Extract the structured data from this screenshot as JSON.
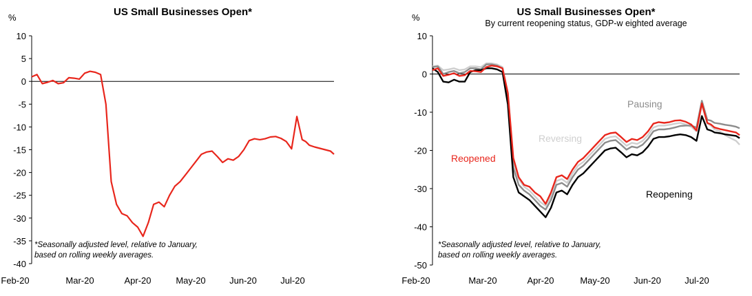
{
  "chart_data": [
    {
      "type": "line",
      "title": "US Small Businesses  Open*",
      "subtitle": "",
      "ylabel": "%",
      "ylim": [
        -40,
        10
      ],
      "yticks": [
        10,
        5,
        0,
        -5,
        -10,
        -15,
        -20,
        -25,
        -30,
        -35,
        -40
      ],
      "xticks": [
        "Feb-20",
        "Mar-20",
        "Apr-20",
        "May-20",
        "Jun-20",
        "Jul-20"
      ],
      "note": [
        "*Seasonally adjusted level, relative to January,",
        "based on rolling weekly averages."
      ],
      "series": [
        {
          "color": "#e8261c",
          "x": [
            0,
            3,
            6,
            9,
            12,
            15,
            18,
            21,
            24,
            27,
            30,
            33,
            36,
            39,
            42,
            45,
            48,
            51,
            54,
            57,
            60,
            63,
            66,
            69,
            72,
            75,
            78,
            81,
            84,
            87,
            90,
            93,
            96,
            99,
            102,
            105,
            108,
            111,
            114,
            117,
            120,
            123,
            126,
            129,
            132,
            135,
            138,
            141,
            144,
            147,
            150,
            153,
            155,
            156,
            157,
            160,
            163,
            166,
            169,
            171
          ],
          "values": [
            1,
            1.5,
            -0.5,
            -0.2,
            0.2,
            -0.5,
            -0.3,
            0.8,
            0.7,
            0.5,
            1.8,
            2.2,
            2,
            1.5,
            -5,
            -22,
            -27,
            -29,
            -29.5,
            -31,
            -32,
            -34,
            -31,
            -27,
            -26.5,
            -27.5,
            -25,
            -23,
            -22,
            -20.5,
            -19,
            -17.5,
            -16,
            -15.5,
            -15.3,
            -16.5,
            -17.8,
            -17,
            -17.3,
            -16.5,
            -15,
            -13,
            -12.6,
            -12.8,
            -12.6,
            -12.2,
            -12.1,
            -12.5,
            -13.2,
            -14.8,
            -7.7,
            -12.8,
            -13.2,
            -13.6,
            -14,
            -14.4,
            -14.7,
            -15,
            -15.3,
            -16
          ]
        }
      ]
    },
    {
      "type": "line",
      "title": "US Small Businesses  Open*",
      "subtitle": "By current reopening status, GDP-w eighted average",
      "ylabel": "%",
      "ylim": [
        -50,
        10
      ],
      "yticks": [
        10,
        0,
        -10,
        -20,
        -30,
        -40,
        -50
      ],
      "xticks": [
        "Feb-20",
        "Mar-20",
        "Apr-20",
        "May-20",
        "Jun-20",
        "Jul-20"
      ],
      "note": [
        "*Seasonally adjusted level, relative to January,",
        "based on rolling weekly averages."
      ],
      "series": [
        {
          "name": "Reopened",
          "color": "#e8261c",
          "x": [
            0,
            3,
            6,
            9,
            12,
            15,
            18,
            21,
            24,
            27,
            30,
            33,
            36,
            39,
            42,
            45,
            48,
            51,
            54,
            57,
            60,
            63,
            66,
            69,
            72,
            75,
            78,
            81,
            84,
            87,
            90,
            93,
            96,
            99,
            102,
            105,
            108,
            111,
            114,
            117,
            120,
            123,
            126,
            129,
            132,
            135,
            138,
            141,
            144,
            147,
            150,
            153,
            155,
            156,
            157,
            160,
            163,
            166,
            169,
            171
          ],
          "values": [
            1,
            1.5,
            -0.5,
            -0.2,
            0.2,
            -0.5,
            -0.3,
            0.8,
            0.7,
            0.5,
            1.8,
            2.2,
            2,
            1.5,
            -5,
            -22,
            -27,
            -29,
            -29.5,
            -31,
            -32,
            -34,
            -31,
            -27,
            -26.5,
            -27.5,
            -25,
            -23,
            -22,
            -20.5,
            -19,
            -17.5,
            -16,
            -15.5,
            -15.3,
            -16.5,
            -17.8,
            -17,
            -17.3,
            -16.5,
            -15,
            -13,
            -12.6,
            -12.8,
            -12.6,
            -12.2,
            -12.1,
            -12.5,
            -13.2,
            -14.8,
            -7.7,
            -12.8,
            -13.2,
            -13.6,
            -14,
            -14.4,
            -14.7,
            -15,
            -15.3,
            -16
          ]
        },
        {
          "name": "Reopening",
          "color": "#000000",
          "x": [
            0,
            3,
            6,
            9,
            12,
            15,
            18,
            21,
            24,
            27,
            30,
            33,
            36,
            39,
            42,
            45,
            48,
            51,
            54,
            57,
            60,
            63,
            66,
            69,
            72,
            75,
            78,
            81,
            84,
            87,
            90,
            93,
            96,
            99,
            102,
            105,
            108,
            111,
            114,
            117,
            120,
            123,
            126,
            129,
            132,
            135,
            138,
            141,
            144,
            147,
            150,
            153,
            155,
            156,
            157,
            160,
            163,
            166,
            169,
            171
          ],
          "values": [
            1.5,
            0.5,
            -2,
            -2.2,
            -1.5,
            -2,
            -2,
            0.5,
            1,
            1,
            1.5,
            1.5,
            1.2,
            0.5,
            -8,
            -27,
            -31,
            -32,
            -33,
            -34.5,
            -36,
            -37.5,
            -35,
            -31,
            -30.5,
            -31.5,
            -29,
            -27,
            -26,
            -24.5,
            -23,
            -21.5,
            -20,
            -19.5,
            -19.3,
            -20.5,
            -21.8,
            -21,
            -21.3,
            -20.5,
            -19,
            -17,
            -16.5,
            -16.5,
            -16.3,
            -16,
            -15.8,
            -16,
            -16.5,
            -17.5,
            -11,
            -14.5,
            -14.8,
            -15,
            -15.3,
            -15.5,
            -15.8,
            -16,
            -16.2,
            -16.8
          ]
        },
        {
          "name": "Pausing",
          "color": "#8c8c8c",
          "x": [
            0,
            3,
            6,
            9,
            12,
            15,
            18,
            21,
            24,
            27,
            30,
            33,
            36,
            39,
            42,
            45,
            48,
            51,
            54,
            57,
            60,
            63,
            66,
            69,
            72,
            75,
            78,
            81,
            84,
            87,
            90,
            93,
            96,
            99,
            102,
            105,
            108,
            111,
            114,
            117,
            120,
            123,
            126,
            129,
            132,
            135,
            138,
            141,
            144,
            147,
            150,
            153,
            155,
            156,
            157,
            160,
            163,
            166,
            169,
            171
          ],
          "values": [
            1.8,
            2,
            0,
            0.5,
            0.8,
            0.2,
            0.5,
            1.5,
            1.5,
            1.2,
            2.5,
            2.5,
            2.2,
            1.5,
            -6,
            -24.5,
            -29,
            -30.5,
            -31.5,
            -33,
            -34.5,
            -35.5,
            -33,
            -29,
            -28.5,
            -29.5,
            -27,
            -25,
            -24,
            -22.5,
            -21,
            -19.5,
            -18,
            -17.5,
            -17.3,
            -18.5,
            -19.8,
            -19,
            -19.3,
            -18.5,
            -17,
            -15,
            -14.5,
            -14.5,
            -14.3,
            -14,
            -13.6,
            -13.5,
            -13.5,
            -14,
            -7,
            -12,
            -12.2,
            -12.5,
            -12.8,
            -13,
            -13.3,
            -13.5,
            -13.8,
            -14.2
          ]
        },
        {
          "name": "Reversing",
          "color": "#cfcfcf",
          "x": [
            0,
            3,
            6,
            9,
            12,
            15,
            18,
            21,
            24,
            27,
            30,
            33,
            36,
            39,
            42,
            45,
            48,
            51,
            54,
            57,
            60,
            63,
            66,
            69,
            72,
            75,
            78,
            81,
            84,
            87,
            90,
            93,
            96,
            99,
            102,
            105,
            108,
            111,
            114,
            117,
            120,
            123,
            126,
            129,
            132,
            135,
            138,
            141,
            144,
            147,
            150,
            153,
            155,
            156,
            157,
            160,
            163,
            166,
            169,
            171
          ],
          "values": [
            2,
            2.2,
            1,
            1.2,
            1.5,
            1,
            1.2,
            2,
            2,
            1.8,
            2.8,
            2.8,
            2.5,
            1.8,
            -5,
            -23,
            -27.5,
            -29.5,
            -30.5,
            -32,
            -33.5,
            -34.5,
            -32,
            -28,
            -27.5,
            -28.5,
            -26,
            -24,
            -23,
            -21.5,
            -20,
            -18.5,
            -17,
            -16.5,
            -16.3,
            -17.5,
            -18.8,
            -18,
            -18.3,
            -17.5,
            -16,
            -14,
            -13.5,
            -13.5,
            -13.3,
            -13,
            -12.8,
            -13.2,
            -13.8,
            -15,
            -8,
            -13,
            -13.5,
            -14,
            -14.5,
            -15,
            -16,
            -16.8,
            -17.5,
            -18.5
          ]
        }
      ]
    }
  ]
}
